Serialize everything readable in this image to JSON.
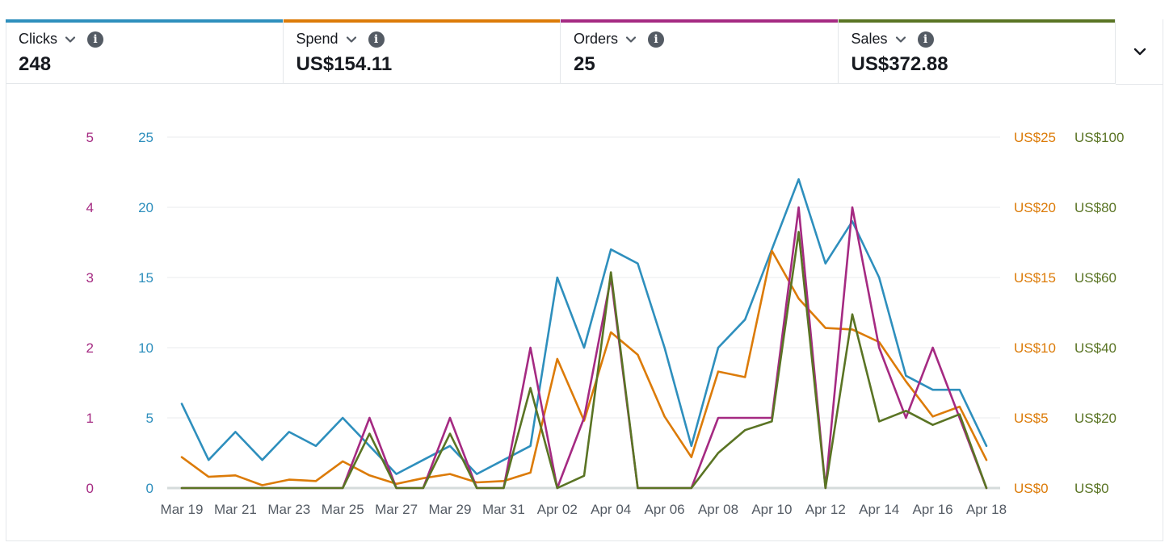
{
  "colors": {
    "clicks": "#2e8fbd",
    "spend": "#dc7b08",
    "orders": "#a52a82",
    "sales": "#5a7424",
    "axis_gray": "#545b64"
  },
  "metrics": [
    {
      "key": "clicks",
      "label": "Clicks",
      "value": "248",
      "color": "#2e8fbd"
    },
    {
      "key": "spend",
      "label": "Spend",
      "value": "US$154.11",
      "color": "#dc7b08"
    },
    {
      "key": "orders",
      "label": "Orders",
      "value": "25",
      "color": "#a52a82"
    },
    {
      "key": "sales",
      "label": "Sales",
      "value": "US$372.88",
      "color": "#5a7424"
    }
  ],
  "icons": {
    "dropdown": "chevron-down-icon",
    "info": "info-icon",
    "expand": "chevron-down-icon"
  },
  "chart_data": {
    "type": "line",
    "grid": true,
    "x": [
      "Mar 19",
      "Mar 20",
      "Mar 21",
      "Mar 22",
      "Mar 23",
      "Mar 24",
      "Mar 25",
      "Mar 26",
      "Mar 27",
      "Mar 28",
      "Mar 29",
      "Mar 30",
      "Mar 31",
      "Apr 01",
      "Apr 02",
      "Apr 03",
      "Apr 04",
      "Apr 05",
      "Apr 06",
      "Apr 07",
      "Apr 08",
      "Apr 09",
      "Apr 10",
      "Apr 11",
      "Apr 12",
      "Apr 13",
      "Apr 14",
      "Apr 15",
      "Apr 16",
      "Apr 17",
      "Apr 18"
    ],
    "x_tick_labels": [
      "Mar 19",
      "Mar 21",
      "Mar 23",
      "Mar 25",
      "Mar 27",
      "Mar 29",
      "Mar 31",
      "Apr 02",
      "Apr 04",
      "Apr 06",
      "Apr 08",
      "Apr 10",
      "Apr 12",
      "Apr 14",
      "Apr 16",
      "Apr 18"
    ],
    "axes": {
      "orders": {
        "side": "left",
        "ylim": [
          0,
          5
        ],
        "ticks": [
          "0",
          "1",
          "2",
          "3",
          "4",
          "5"
        ]
      },
      "clicks": {
        "side": "left",
        "ylim": [
          0,
          25
        ],
        "ticks": [
          "0",
          "5",
          "10",
          "15",
          "20",
          "25"
        ]
      },
      "spend": {
        "side": "right",
        "ylim": [
          0,
          25
        ],
        "ticks": [
          "US$0",
          "US$5",
          "US$10",
          "US$15",
          "US$20",
          "US$25"
        ]
      },
      "sales": {
        "side": "right",
        "ylim": [
          0,
          100
        ],
        "ticks": [
          "US$0",
          "US$20",
          "US$40",
          "US$60",
          "US$80",
          "US$100"
        ]
      }
    },
    "series": [
      {
        "name": "Clicks",
        "key": "clicks",
        "values": [
          6,
          2,
          4,
          2,
          4,
          3,
          5,
          3,
          1,
          2,
          3,
          1,
          2,
          3,
          15,
          10,
          17,
          16,
          10,
          3,
          10,
          12,
          17,
          22,
          16,
          19,
          15,
          8,
          7,
          7,
          3
        ]
      },
      {
        "name": "Spend",
        "key": "spend",
        "values": [
          2.2,
          0.8,
          0.9,
          0.2,
          0.6,
          0.5,
          1.9,
          0.9,
          0.3,
          0.7,
          1.0,
          0.4,
          0.5,
          1.1,
          9.2,
          4.8,
          11.1,
          9.5,
          5.1,
          2.2,
          8.3,
          7.9,
          16.9,
          13.5,
          11.4,
          11.3,
          10.4,
          7.6,
          5.1,
          5.8,
          2.0
        ]
      },
      {
        "name": "Orders",
        "key": "orders",
        "values": [
          0,
          0,
          0,
          0,
          0,
          0,
          0,
          1,
          0,
          0,
          1,
          0,
          0,
          2,
          0,
          1,
          3,
          0,
          0,
          0,
          1,
          1,
          1,
          4,
          0,
          4,
          2,
          1,
          2,
          1,
          0
        ]
      },
      {
        "name": "Sales",
        "key": "sales",
        "values": [
          0,
          0,
          0,
          0,
          0,
          0,
          0,
          15.5,
          0,
          0,
          15.5,
          0,
          0,
          28.5,
          0,
          3.5,
          61.5,
          0,
          0,
          0,
          10,
          16.5,
          19,
          73,
          0,
          49.5,
          19,
          22,
          18,
          21,
          0
        ]
      }
    ]
  }
}
